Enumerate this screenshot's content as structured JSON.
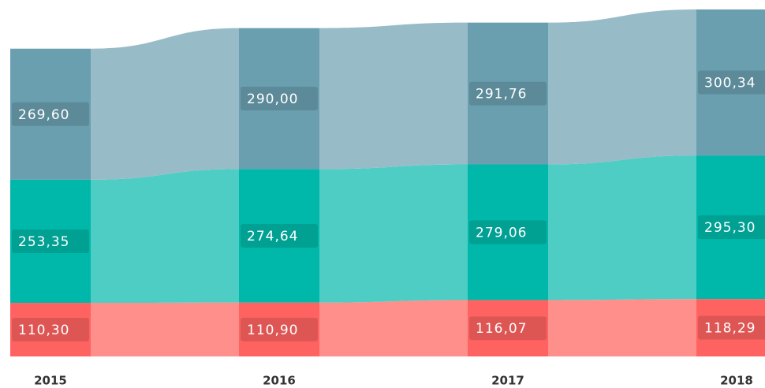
{
  "chart_data": {
    "type": "stacked-flow-bar",
    "categories": [
      "2015",
      "2016",
      "2017",
      "2018"
    ],
    "series": [
      {
        "color": "#ff6361",
        "flow_color": "#ff8f8a",
        "values": [
          110.3,
          110.9,
          116.07,
          118.29
        ],
        "value_labels": [
          "110,30",
          "110,90",
          "116,07",
          "118,29"
        ]
      },
      {
        "color": "#00b8a9",
        "flow_color": "#4ecdc4",
        "values": [
          253.35,
          274.64,
          279.06,
          295.3
        ],
        "value_labels": [
          "253,35",
          "274,64",
          "279,06",
          "295,30"
        ]
      },
      {
        "color": "#6a9fb0",
        "flow_color": "#97bcc7",
        "values": [
          269.6,
          290.0,
          291.76,
          300.34
        ],
        "value_labels": [
          "269,60",
          "290,00",
          "291,76",
          "300,34"
        ]
      }
    ]
  }
}
